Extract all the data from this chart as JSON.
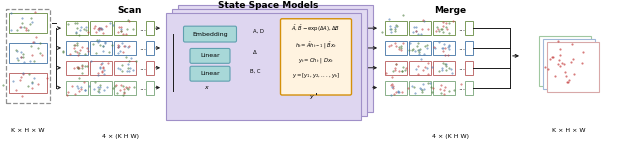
{
  "title": "State Space Models",
  "scan_label": "Scan",
  "merge_label": "Merge",
  "label_khw": "K × H × W",
  "label_4khw_left": "4 × (K H W)",
  "label_4khw_right": "4 × (K H W)",
  "embed_label": "Embedding",
  "linear1_label": "Linear",
  "linear2_label": "Linear",
  "colors": {
    "row0_edge": "#7a9a5a",
    "row1_edge": "#5a85b0",
    "row2_edge": "#c07070",
    "row3_edge": "#8ab08a",
    "ssm_panel": "#d8d0ee",
    "ssm_panel_edge": "#a090c8",
    "embed_fill": "#a8d8d8",
    "embed_edge": "#60a0b0",
    "eq_fill": "#fff3e0",
    "eq_edge": "#d4900a",
    "dashed_box": "#909090",
    "arrow": "#1a1a1a",
    "black": "#000000",
    "out_edge0": "#a0c8a0",
    "out_edge1": "#a0b8d8",
    "out_edge2": "#d8a8a8"
  },
  "background": "#ffffff",
  "row_colors_dot": [
    "#5a8a3a",
    "#4a78b0",
    "#c04040",
    "#80b080"
  ],
  "row_extra_dot_colors": [
    [
      "#4a7a3a",
      "#a04040",
      "#4a78b0"
    ],
    [
      "#c04040",
      "#4a8a4a",
      "#4a78b0"
    ],
    [
      "#4a8a4a",
      "#c04040",
      "#4a78b0"
    ],
    [
      "#c04040",
      "#4a78b0",
      "#4a8a4a"
    ]
  ]
}
